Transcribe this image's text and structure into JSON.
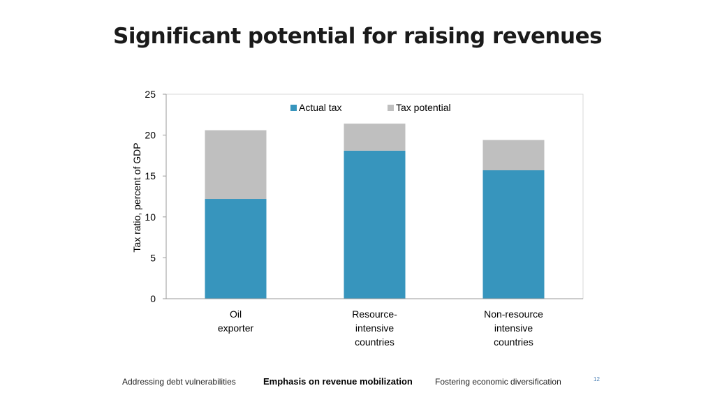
{
  "slide": {
    "title": "Significant potential for raising revenues",
    "page_number": "12"
  },
  "footer": {
    "left": "Addressing debt vulnerabilities",
    "center": "Emphasis on revenue mobilization",
    "right": "Fostering economic diversification"
  },
  "chart_data": {
    "type": "bar",
    "stacked": true,
    "title": "",
    "xlabel": "",
    "ylabel": "Tax ratio, percent of GDP",
    "ylim": [
      0,
      25
    ],
    "yticks": [
      0,
      5,
      10,
      15,
      20,
      25
    ],
    "categories": [
      [
        "Oil",
        "exporter"
      ],
      [
        "Resource-",
        "intensive",
        "countries"
      ],
      [
        "Non-resource",
        "intensive",
        "countries"
      ]
    ],
    "series": [
      {
        "name": "Actual tax",
        "values": [
          12.2,
          18.1,
          15.7
        ],
        "color": "#3795bd"
      },
      {
        "name": "Tax potential",
        "values": [
          8.4,
          3.3,
          3.7
        ],
        "color": "#bfbfbf"
      }
    ],
    "legend_position": "top-center",
    "grid": false
  }
}
